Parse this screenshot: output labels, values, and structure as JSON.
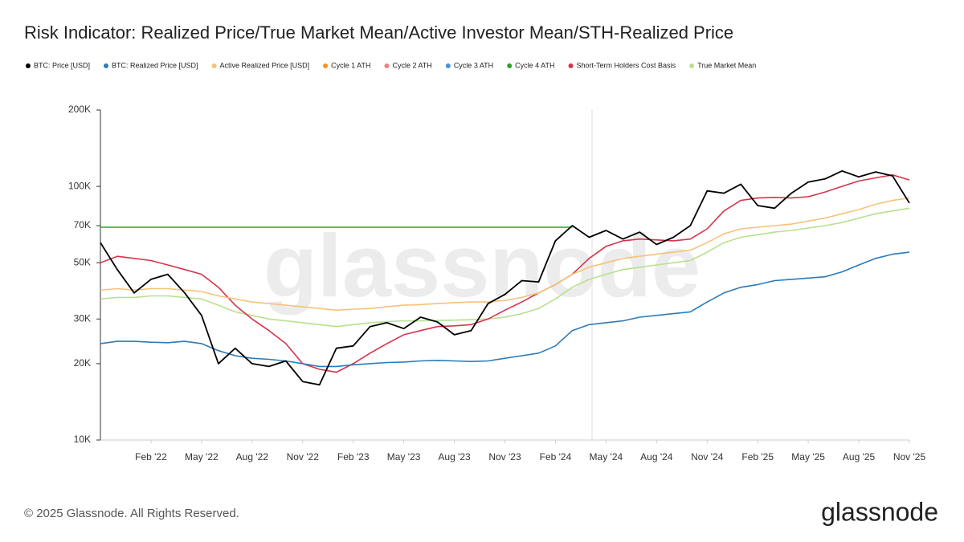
{
  "chart_data": {
    "type": "line",
    "title": "Risk Indicator: Realized Price/True Market Mean/Active Investor Mean/STH-Realized Price",
    "watermark": "glassnode",
    "logo": "glassnode",
    "footer": "© 2025 Glassnode. All Rights Reserved.",
    "log_scale": true,
    "grid": false,
    "legend": "top",
    "x": [
      "2021-11",
      "2021-12",
      "2022-01",
      "2022-02",
      "2022-03",
      "2022-04",
      "2022-05",
      "2022-06",
      "2022-07",
      "2022-08",
      "2022-09",
      "2022-10",
      "2022-11",
      "2022-12",
      "2023-01",
      "2023-02",
      "2023-03",
      "2023-04",
      "2023-05",
      "2023-06",
      "2023-07",
      "2023-08",
      "2023-09",
      "2023-10",
      "2023-11",
      "2023-12",
      "2024-01",
      "2024-02",
      "2024-03",
      "2024-04",
      "2024-05",
      "2024-06",
      "2024-07",
      "2024-08",
      "2024-09",
      "2024-10",
      "2024-11",
      "2024-12",
      "2025-01",
      "2025-02",
      "2025-03",
      "2025-04",
      "2025-05",
      "2025-06",
      "2025-07",
      "2025-08",
      "2025-09",
      "2025-10",
      "2025-11"
    ],
    "xlim": [
      "2021-11",
      "2025-11"
    ],
    "xticks": [
      {
        "value": "2022-02",
        "label": "Feb '22"
      },
      {
        "value": "2022-05",
        "label": "May '22"
      },
      {
        "value": "2022-08",
        "label": "Aug '22"
      },
      {
        "value": "2022-11",
        "label": "Nov '22"
      },
      {
        "value": "2023-02",
        "label": "Feb '23"
      },
      {
        "value": "2023-05",
        "label": "May '23"
      },
      {
        "value": "2023-08",
        "label": "Aug '23"
      },
      {
        "value": "2023-11",
        "label": "Nov '23"
      },
      {
        "value": "2024-02",
        "label": "Feb '24"
      },
      {
        "value": "2024-05",
        "label": "May '24"
      },
      {
        "value": "2024-08",
        "label": "Aug '24"
      },
      {
        "value": "2024-11",
        "label": "Nov '24"
      },
      {
        "value": "2025-02",
        "label": "Feb '25"
      },
      {
        "value": "2025-05",
        "label": "May '25"
      },
      {
        "value": "2025-08",
        "label": "Aug '25"
      },
      {
        "value": "2025-11",
        "label": "Nov '25"
      }
    ],
    "ylim": [
      10000,
      200000
    ],
    "yticks": [
      {
        "value": 10000,
        "label": "10K"
      },
      {
        "value": 20000,
        "label": "20K"
      },
      {
        "value": 30000,
        "label": "30K"
      },
      {
        "value": 50000,
        "label": "50K"
      },
      {
        "value": 70000,
        "label": "70K"
      },
      {
        "value": 100000,
        "label": "100K"
      },
      {
        "value": 200000,
        "label": "200K"
      }
    ],
    "series": [
      {
        "name": "BTC: Price [USD]",
        "color": "#000000",
        "values": [
          60000,
          47000,
          38000,
          43000,
          45000,
          38000,
          31000,
          20000,
          23000,
          20000,
          19500,
          20500,
          17000,
          16500,
          23000,
          23500,
          28000,
          29000,
          27500,
          30500,
          29200,
          26000,
          27000,
          34500,
          37500,
          42500,
          42000,
          61000,
          70000,
          63000,
          67000,
          62000,
          66000,
          59000,
          63000,
          70000,
          96000,
          94000,
          102000,
          84000,
          82000,
          94000,
          104000,
          107000,
          115000,
          109000,
          114000,
          110000,
          86000
        ]
      },
      {
        "name": "BTC: Realized Price [USD]",
        "color": "#2b7bba",
        "values": [
          24000,
          24500,
          24500,
          24300,
          24200,
          24500,
          24000,
          22500,
          21500,
          21000,
          20800,
          20500,
          20000,
          19500,
          19500,
          19800,
          20000,
          20200,
          20300,
          20500,
          20600,
          20500,
          20400,
          20500,
          21000,
          21500,
          22000,
          23500,
          27000,
          28500,
          29000,
          29500,
          30500,
          31000,
          31500,
          32000,
          35000,
          38000,
          40000,
          41000,
          42500,
          43000,
          43500,
          44000,
          46000,
          49000,
          52000,
          54000,
          55000
        ]
      },
      {
        "name": "Active Realized Price [USD]",
        "color": "#f7c27a",
        "values": [
          39000,
          39500,
          39000,
          39500,
          39500,
          39000,
          38500,
          37000,
          36000,
          35000,
          34500,
          34000,
          33500,
          33000,
          32500,
          32800,
          33000,
          33500,
          34000,
          34200,
          34500,
          34800,
          35000,
          35000,
          35500,
          36500,
          38000,
          41000,
          45000,
          48000,
          50000,
          52000,
          53000,
          54000,
          55000,
          56000,
          60000,
          65000,
          68000,
          69000,
          70000,
          71000,
          73000,
          75000,
          78000,
          81000,
          85000,
          88000,
          90000
        ]
      },
      {
        "name": "Cycle 1 ATH",
        "color": "#f7931a",
        "values": [
          null,
          null,
          null,
          null,
          null,
          null,
          null,
          null,
          null,
          null,
          null,
          null,
          null,
          null,
          null,
          null,
          null,
          null,
          null,
          null,
          null,
          null,
          null,
          null,
          null,
          null,
          null,
          null,
          null,
          null,
          null,
          null,
          null,
          null,
          null,
          null,
          null,
          null,
          null,
          null,
          null,
          null,
          null,
          null,
          null,
          null,
          null,
          null,
          null
        ]
      },
      {
        "name": "Cycle 2 ATH",
        "color": "#f08080",
        "values": [
          null,
          null,
          null,
          null,
          null,
          null,
          null,
          null,
          null,
          null,
          null,
          null,
          null,
          null,
          null,
          null,
          null,
          null,
          null,
          null,
          null,
          null,
          null,
          null,
          null,
          null,
          null,
          null,
          null,
          null,
          null,
          null,
          null,
          null,
          null,
          null,
          null,
          null,
          null,
          null,
          null,
          null,
          null,
          null,
          null,
          null,
          null,
          null,
          null
        ]
      },
      {
        "name": "Cycle 3 ATH",
        "color": "#4a90e2",
        "values": [
          null,
          null,
          null,
          null,
          null,
          null,
          null,
          null,
          null,
          null,
          null,
          null,
          null,
          null,
          null,
          null,
          null,
          null,
          null,
          null,
          null,
          null,
          null,
          null,
          null,
          null,
          null,
          null,
          null,
          null,
          null,
          null,
          null,
          null,
          null,
          null,
          null,
          null,
          null,
          null,
          null,
          null,
          null,
          null,
          null,
          null,
          null,
          null,
          null
        ]
      },
      {
        "name": "Cycle 4 ATH",
        "color": "#2ca02c",
        "values": [
          69000,
          69000,
          69000,
          69000,
          69000,
          69000,
          69000,
          69000,
          69000,
          69000,
          69000,
          69000,
          69000,
          69000,
          69000,
          69000,
          69000,
          69000,
          69000,
          69000,
          69000,
          69000,
          69000,
          69000,
          69000,
          69000,
          69000,
          69000,
          69000,
          null,
          null,
          null,
          null,
          null,
          null,
          null,
          null,
          null,
          null,
          null,
          null,
          null,
          null,
          null,
          null,
          null,
          null,
          null,
          null
        ]
      },
      {
        "name": "Short-Term Holders Cost Basis",
        "color": "#d6344a",
        "values": [
          50000,
          53000,
          52000,
          51000,
          49000,
          47000,
          45000,
          40000,
          34000,
          30000,
          27000,
          24000,
          20000,
          19000,
          18500,
          20000,
          22000,
          24000,
          26000,
          27000,
          28000,
          28200,
          28500,
          30000,
          32500,
          35000,
          38000,
          41000,
          45000,
          52000,
          58000,
          61000,
          62000,
          61500,
          61000,
          62000,
          68000,
          80000,
          88000,
          90000,
          90500,
          90000,
          91000,
          95000,
          100000,
          105000,
          108000,
          111000,
          106000
        ]
      },
      {
        "name": "True Market Mean",
        "color": "#b8e08f",
        "values": [
          36000,
          36500,
          36500,
          37000,
          37000,
          36500,
          36000,
          34000,
          32000,
          31000,
          30000,
          29500,
          29000,
          28500,
          28000,
          28500,
          29000,
          29300,
          29500,
          29500,
          29600,
          29700,
          29800,
          30000,
          30500,
          31500,
          33000,
          36000,
          40000,
          43000,
          45000,
          47000,
          48000,
          49000,
          50000,
          51000,
          55000,
          60000,
          63000,
          64500,
          66000,
          67000,
          68500,
          70000,
          72000,
          75000,
          78000,
          80000,
          82000
        ]
      }
    ]
  }
}
